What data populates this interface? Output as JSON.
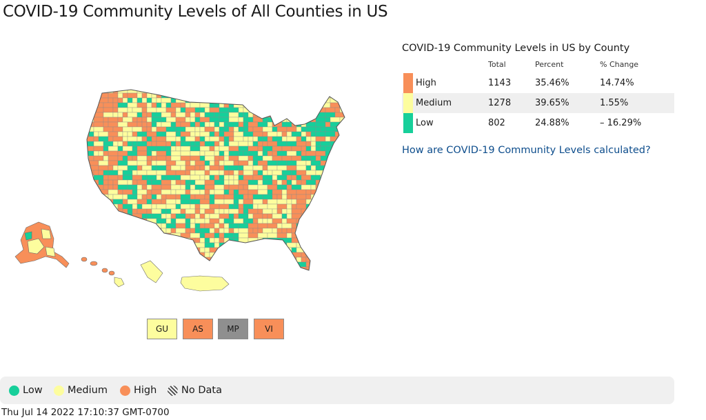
{
  "title": "COVID-19 Community Levels of All Counties in US",
  "colors": {
    "high": "#f88f59",
    "medium": "#fdfd9e",
    "low": "#17cf9a",
    "nodata": "#8f8f8f",
    "border": "#6a6a6a"
  },
  "territories": [
    {
      "label": "GU",
      "level": "medium"
    },
    {
      "label": "AS",
      "level": "high"
    },
    {
      "label": "MP",
      "level": "nodata"
    },
    {
      "label": "VI",
      "level": "high"
    }
  ],
  "table": {
    "title": "COVID-19 Community Levels in US by County",
    "headers": {
      "total": "Total",
      "percent": "Percent",
      "change": "% Change"
    },
    "rows": [
      {
        "level": "High",
        "total": "1143",
        "percent": "35.46%",
        "change": "14.74%"
      },
      {
        "level": "Medium",
        "total": "1278",
        "percent": "39.65%",
        "change": "1.55%"
      },
      {
        "level": "Low",
        "total": "802",
        "percent": "24.88%",
        "change": "– 16.29%"
      }
    ]
  },
  "link_text": "How are COVID-19 Community Levels calculated?",
  "legend": {
    "low": "Low",
    "medium": "Medium",
    "high": "High",
    "nodata": "No Data"
  },
  "timestamp": "Thu Jul 14 2022 17:10:37 GMT-0700"
}
